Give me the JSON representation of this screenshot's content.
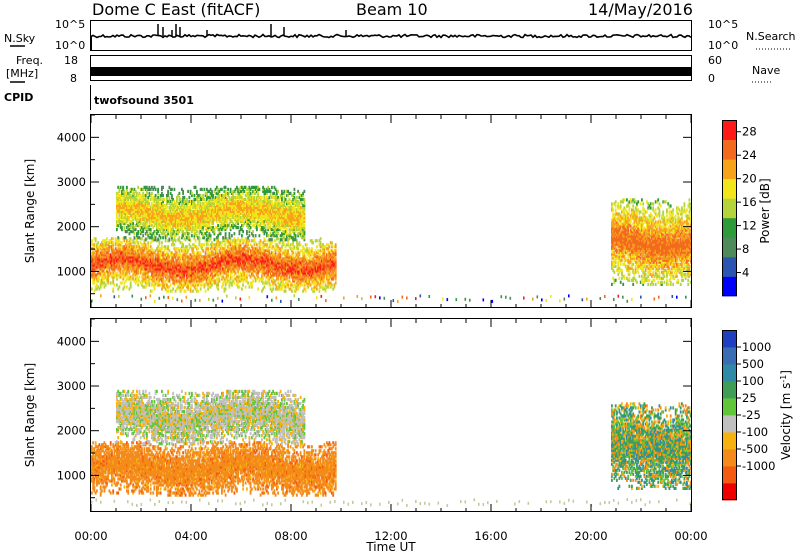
{
  "header": {
    "station": "Dome C East (fitACF)",
    "beam": "Beam 10",
    "date": "14/May/2016"
  },
  "strips": {
    "nsky_label": "N.Sky",
    "nsearch_label": "N.Search",
    "noise_ticks": [
      "10^5",
      "10^0"
    ],
    "freq_label": "Freq.",
    "freq_unit": "[MHz]",
    "freq_ticks": [
      "18",
      "8"
    ],
    "nave_label": "Nave",
    "nave_ticks": [
      "60",
      "0"
    ],
    "cpid_label": "CPID",
    "cpid_value": "twofsound 3501"
  },
  "colors": {
    "power_scale": [
      "#0000ff",
      "#2b55b0",
      "#4f8a5a",
      "#2e9a3a",
      "#b5d33a",
      "#f2e51c",
      "#f7a21b",
      "#f36a1f",
      "#ff1a1a"
    ],
    "velocity_scale": [
      "#ee0000",
      "#f45a10",
      "#f38a1a",
      "#f6b20f",
      "#c0c0c0",
      "#5fc63a",
      "#3f9d57",
      "#2e8aa6",
      "#3b6db5",
      "#1f3fbf"
    ]
  },
  "chart_data": [
    {
      "type": "heatmap",
      "panel": "power",
      "ylabel": "Slant Range [km]",
      "ylim": [
        180,
        4500
      ],
      "yticks": [
        "1000",
        "2000",
        "3000",
        "4000"
      ],
      "xlim": [
        "00:00",
        "24:00"
      ],
      "colorbar": {
        "label": "Power [dB]",
        "ticks": [
          "4",
          "8",
          "12",
          "16",
          "20",
          "24",
          "28"
        ],
        "range": [
          0,
          30
        ]
      },
      "echo_regions": [
        {
          "time_start": 0.0,
          "time_end": 9.8,
          "range_start": 550,
          "range_end": 1750,
          "typical_value": 22
        },
        {
          "time_start": 1.0,
          "time_end": 8.5,
          "range_start": 1700,
          "range_end": 2900,
          "typical_value": 12
        },
        {
          "time_start": 20.8,
          "time_end": 24.0,
          "range_start": 700,
          "range_end": 2600,
          "typical_value": 20
        }
      ]
    },
    {
      "type": "heatmap",
      "panel": "velocity",
      "ylabel": "Slant Range [km]",
      "ylim": [
        180,
        4500
      ],
      "yticks": [
        "1000",
        "2000",
        "3000",
        "4000"
      ],
      "xlim": [
        "00:00",
        "24:00"
      ],
      "xlabel": "Time UT",
      "xticks": [
        "00:00",
        "04:00",
        "08:00",
        "12:00",
        "16:00",
        "20:00",
        "00:00"
      ],
      "colorbar": {
        "label": "Velocity [m s^-1]",
        "ticks": [
          "1000",
          "500",
          "100",
          "25",
          "-25",
          "-100",
          "-500",
          "-1000"
        ]
      },
      "echo_regions": [
        {
          "time_start": 0.0,
          "time_end": 9.8,
          "range_start": 550,
          "range_end": 1750,
          "typical_value": -300
        },
        {
          "time_start": 1.0,
          "time_end": 8.5,
          "range_start": 1700,
          "range_end": 2900,
          "typical_value": 0
        },
        {
          "time_start": 20.8,
          "time_end": 24.0,
          "range_start": 700,
          "range_end": 2600,
          "typical_value": 150
        }
      ]
    }
  ]
}
